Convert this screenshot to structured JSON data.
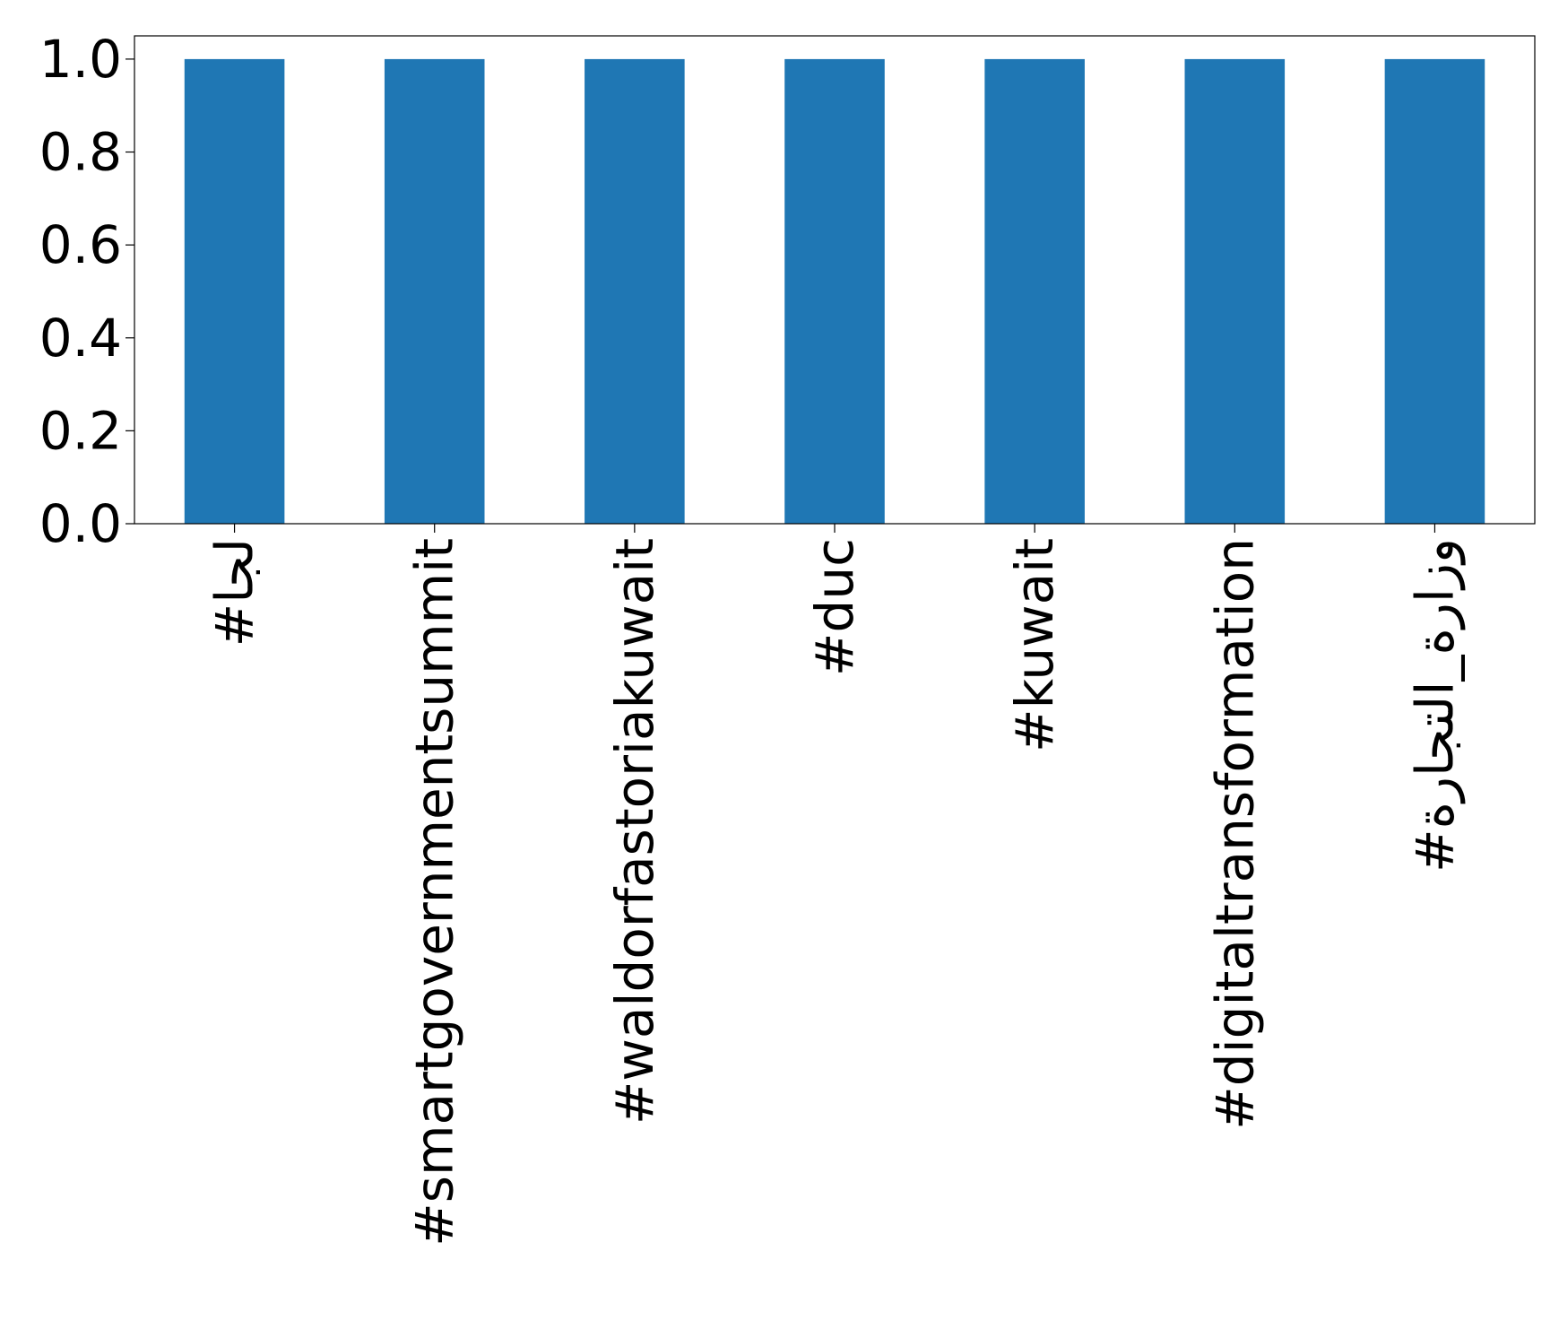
{
  "chart_data": {
    "type": "bar",
    "title": "",
    "xlabel": "",
    "ylabel": "",
    "categories": [
      "#لجا",
      "#smartgovernmentsummit",
      "#waldorfastoriakuwait",
      "#duc",
      "#kuwait",
      "#digitaltransformation",
      "#وزارة_التجارة"
    ],
    "values": [
      1,
      1,
      1,
      1,
      1,
      1,
      1
    ],
    "ylim": [
      0,
      1.05
    ],
    "yticks": [
      "0.0",
      "0.2",
      "0.4",
      "0.6",
      "0.8",
      "1.0"
    ],
    "bar_color": "#1f77b4",
    "grid": false,
    "legend": "none"
  }
}
